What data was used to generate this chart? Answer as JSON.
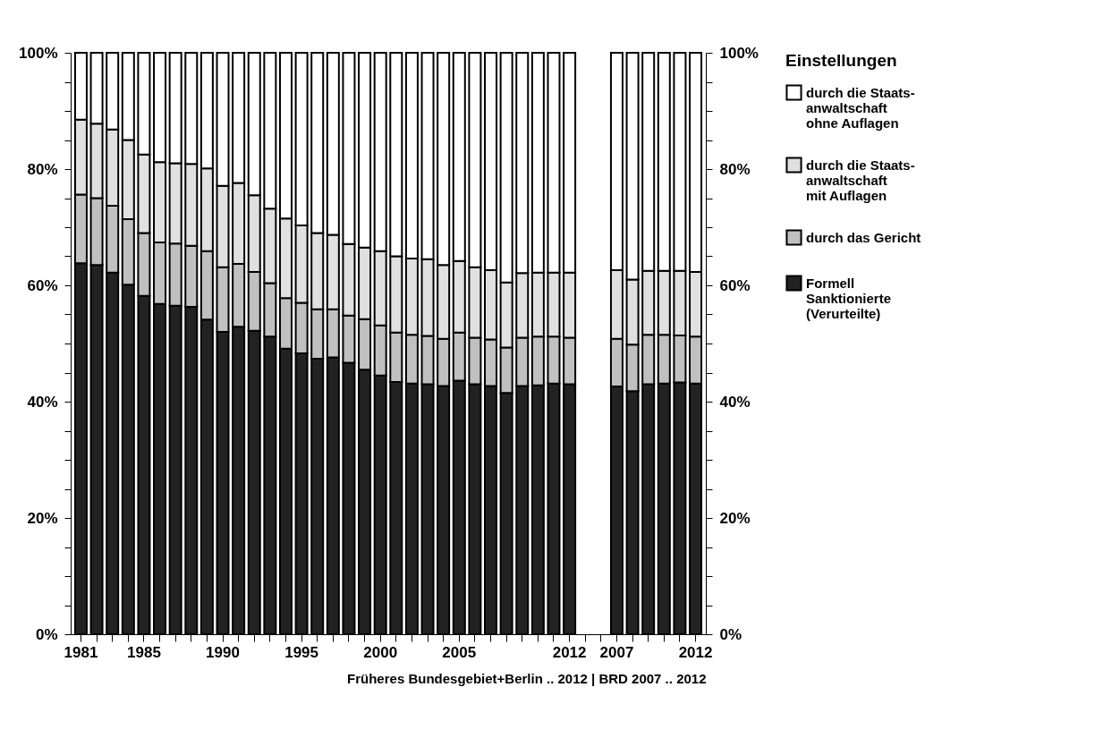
{
  "chart_data": {
    "type": "bar",
    "stacked": true,
    "categories": [
      "1981",
      null,
      null,
      null,
      "1985",
      null,
      null,
      null,
      null,
      "1990",
      null,
      null,
      null,
      null,
      "1995",
      null,
      null,
      null,
      null,
      "2000",
      null,
      null,
      null,
      null,
      "2005",
      null,
      null,
      null,
      null,
      null,
      null,
      "2012",
      null,
      null,
      "2007",
      null,
      null,
      null,
      null,
      "2012"
    ],
    "series": [
      {
        "name": "Formell\nSanktionierte\n(Verurteilte)",
        "color": "#222222",
        "values": [
          63.8,
          63.5,
          62.2,
          60.1,
          58.2,
          56.8,
          56.5,
          56.3,
          54.1,
          52.0,
          52.9,
          52.2,
          51.2,
          49.1,
          48.3,
          47.4,
          47.6,
          46.7,
          45.5,
          44.5,
          43.4,
          43.1,
          43.0,
          42.7,
          43.6,
          43.0,
          42.7,
          41.5,
          42.7,
          42.8,
          43.1,
          43.0,
          null,
          null,
          42.6,
          41.8,
          43.0,
          43.1,
          43.3,
          43.1
        ]
      },
      {
        "name": "durch das Gericht",
        "color": "#c0c0c0",
        "values": [
          11.8,
          11.5,
          11.5,
          11.3,
          10.8,
          10.6,
          10.7,
          10.5,
          11.8,
          11.1,
          10.8,
          10.1,
          9.2,
          8.7,
          8.7,
          8.5,
          8.3,
          8.1,
          8.7,
          8.6,
          8.5,
          8.4,
          8.3,
          8.1,
          8.3,
          8.0,
          8.0,
          7.8,
          8.3,
          8.4,
          8.1,
          8.0,
          null,
          null,
          8.2,
          8.0,
          8.5,
          8.4,
          8.1,
          8.1
        ]
      },
      {
        "name": "durch die Staats-\nanwaltschaft\nmit Auflagen",
        "color": "#e0e0e0",
        "values": [
          12.9,
          12.8,
          13.1,
          13.6,
          13.5,
          13.8,
          13.8,
          14.1,
          14.2,
          14.0,
          13.9,
          13.2,
          12.8,
          13.7,
          13.3,
          13.1,
          12.8,
          12.3,
          12.3,
          12.8,
          13.1,
          13.1,
          13.2,
          12.7,
          12.3,
          12.1,
          11.9,
          11.2,
          11.1,
          11.0,
          11.0,
          11.2,
          null,
          null,
          11.8,
          11.2,
          11.0,
          11.0,
          11.1,
          11.1
        ]
      },
      {
        "name": "durch die Staats-\nanwaltschaft\nohne Auflagen",
        "color": "#ffffff",
        "values": [
          11.5,
          12.2,
          13.2,
          15.0,
          17.5,
          18.8,
          19.0,
          19.1,
          19.9,
          22.9,
          22.4,
          24.5,
          26.8,
          28.5,
          29.7,
          31.0,
          31.3,
          32.9,
          33.5,
          34.1,
          35.0,
          35.4,
          35.5,
          36.5,
          35.8,
          36.9,
          37.4,
          39.5,
          37.9,
          37.8,
          37.8,
          37.8,
          null,
          null,
          37.4,
          39.0,
          37.5,
          37.5,
          37.5,
          37.7
        ]
      }
    ],
    "xlabel": "Früheres Bundesgebiet+Berlin .. 2012 | BRD 2007 .. 2012",
    "legend_title": "Einstellungen",
    "legend": "right",
    "ylim": [
      0,
      100
    ],
    "yticks": [
      {
        "value": 0,
        "label": "0%"
      },
      {
        "value": 5,
        "label": null
      },
      {
        "value": 10,
        "label": null
      },
      {
        "value": 15,
        "label": null
      },
      {
        "value": 20,
        "label": "20%"
      },
      {
        "value": 25,
        "label": null
      },
      {
        "value": 30,
        "label": null
      },
      {
        "value": 35,
        "label": null
      },
      {
        "value": 40,
        "label": "40%"
      },
      {
        "value": 45,
        "label": null
      },
      {
        "value": 50,
        "label": null
      },
      {
        "value": 55,
        "label": null
      },
      {
        "value": 60,
        "label": "60%"
      },
      {
        "value": 65,
        "label": null
      },
      {
        "value": 70,
        "label": null
      },
      {
        "value": 75,
        "label": null
      },
      {
        "value": 80,
        "label": "80%"
      },
      {
        "value": 85,
        "label": null
      },
      {
        "value": 90,
        "label": null
      },
      {
        "value": 95,
        "label": null
      },
      {
        "value": 100,
        "label": "100%"
      }
    ],
    "y2lim": [
      0,
      100
    ],
    "y2ticks": [
      {
        "value": 0,
        "label": "0%"
      },
      {
        "value": 5,
        "label": null
      },
      {
        "value": 10,
        "label": null
      },
      {
        "value": 15,
        "label": null
      },
      {
        "value": 20,
        "label": "20%"
      },
      {
        "value": 25,
        "label": null
      },
      {
        "value": 30,
        "label": null
      },
      {
        "value": 35,
        "label": null
      },
      {
        "value": 40,
        "label": "40%"
      },
      {
        "value": 45,
        "label": null
      },
      {
        "value": 50,
        "label": null
      },
      {
        "value": 55,
        "label": null
      },
      {
        "value": 60,
        "label": "60%"
      },
      {
        "value": 65,
        "label": null
      },
      {
        "value": 70,
        "label": null
      },
      {
        "value": 75,
        "label": null
      },
      {
        "value": 80,
        "label": "80%"
      },
      {
        "value": 85,
        "label": null
      },
      {
        "value": 90,
        "label": null
      },
      {
        "value": 95,
        "label": null
      },
      {
        "value": 100,
        "label": "100%"
      }
    ],
    "grid": false
  }
}
